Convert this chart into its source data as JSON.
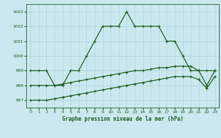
{
  "title": "Graphe pression niveau de la mer (hPa)",
  "bg_color": "#cce8ef",
  "grid_color": "#aad0d8",
  "line_color": "#1a5c1a",
  "line1": [
    999,
    999,
    999,
    998,
    998,
    999,
    999,
    1000,
    1001,
    1002,
    1002,
    1002,
    1003,
    1002,
    1002,
    1002,
    1002,
    1001,
    1001,
    1000,
    999,
    999,
    999,
    999
  ],
  "line2": [
    998.0,
    998.0,
    998.0,
    998.0,
    998.1,
    998.2,
    998.3,
    998.4,
    998.5,
    998.6,
    998.7,
    998.8,
    998.9,
    999.0,
    999.0,
    999.1,
    999.2,
    999.2,
    999.3,
    999.3,
    999.3,
    999.0,
    998.0,
    999.0
  ],
  "line3": [
    997.0,
    997.0,
    997.0,
    997.1,
    997.2,
    997.3,
    997.4,
    997.5,
    997.6,
    997.7,
    997.8,
    997.9,
    998.0,
    998.1,
    998.2,
    998.3,
    998.4,
    998.5,
    998.6,
    998.6,
    998.6,
    998.4,
    997.8,
    998.6
  ],
  "xlim": [
    -0.5,
    23.5
  ],
  "ylim": [
    996.5,
    1003.5
  ],
  "yticks": [
    997,
    998,
    999,
    1000,
    1001,
    1002,
    1003
  ],
  "xticks": [
    0,
    1,
    2,
    3,
    4,
    5,
    6,
    7,
    8,
    9,
    10,
    11,
    12,
    13,
    14,
    15,
    16,
    17,
    18,
    19,
    20,
    21,
    22,
    23
  ]
}
